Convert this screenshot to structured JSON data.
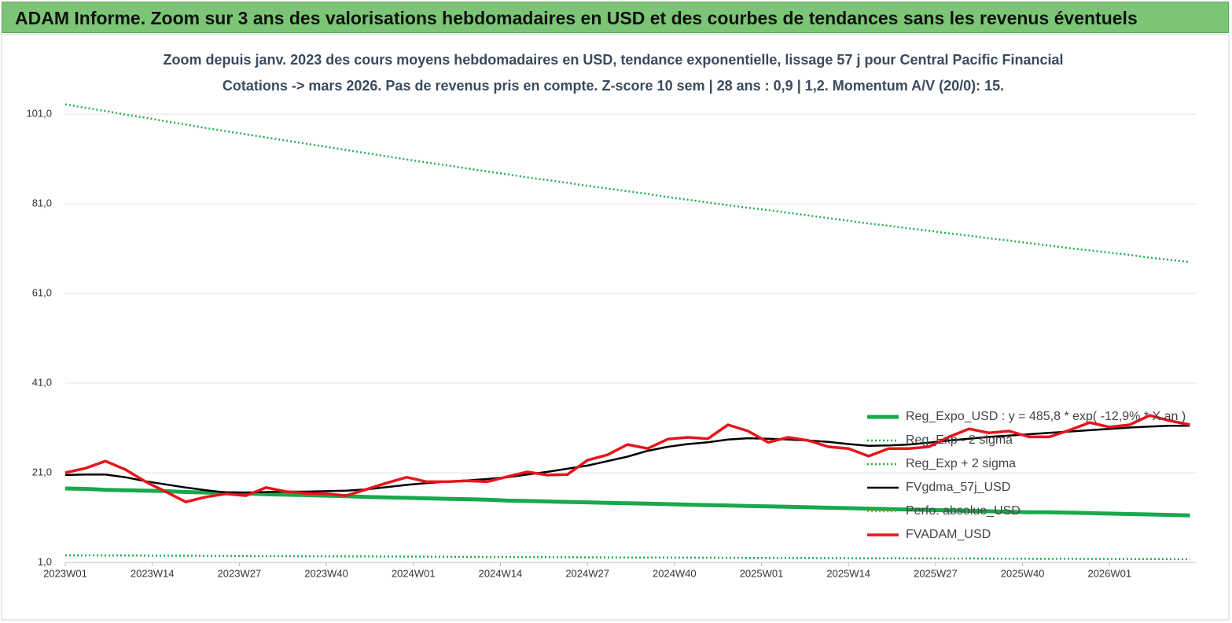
{
  "header": {
    "title": "ADAM Informe. Zoom sur 3 ans des valorisations hebdomadaires en USD et des courbes de tendances sans les revenus éventuels"
  },
  "chart_data": {
    "type": "line",
    "title": "Zoom depuis janv. 2023 des cours moyens hebdomadaires en USD, tendance exponentielle, lissage 57 j pour Central Pacific Financial",
    "subtitle": "Cotations -> mars 2026. Pas de revenus pris en compte. Z-score 10 sem | 28 ans : 0,9 | 1,2. Momentum A/V (20/0): 15.",
    "x": [
      0,
      3,
      6,
      9,
      12,
      15,
      18,
      21,
      24,
      27,
      30,
      33,
      36,
      39,
      42,
      45,
      48,
      51,
      54,
      57,
      60,
      63,
      66,
      69,
      72,
      75,
      78,
      81,
      84,
      87,
      90,
      93,
      96,
      99,
      102,
      105,
      108,
      111,
      114,
      117,
      120,
      123,
      126,
      129,
      132,
      135,
      138,
      141,
      144,
      147,
      150,
      153,
      156,
      159,
      162,
      165,
      168
    ],
    "xlim": [
      0,
      169
    ],
    "xticks": [
      {
        "value": 0,
        "label": "2023W01"
      },
      {
        "value": 13,
        "label": "2023W14"
      },
      {
        "value": 26,
        "label": "2023W27"
      },
      {
        "value": 39,
        "label": "2023W40"
      },
      {
        "value": 52,
        "label": "2024W01"
      },
      {
        "value": 65,
        "label": "2024W14"
      },
      {
        "value": 78,
        "label": "2024W27"
      },
      {
        "value": 91,
        "label": "2024W40"
      },
      {
        "value": 104,
        "label": "2025W01"
      },
      {
        "value": 117,
        "label": "2025W14"
      },
      {
        "value": 130,
        "label": "2025W27"
      },
      {
        "value": 143,
        "label": "2025W40"
      },
      {
        "value": 156,
        "label": "2026W01"
      }
    ],
    "ylim": [
      1,
      104
    ],
    "yticks": [
      {
        "value": 1,
        "label": "1,0"
      },
      {
        "value": 21,
        "label": "21,0"
      },
      {
        "value": 41,
        "label": "41,0"
      },
      {
        "value": 61,
        "label": "61,0"
      },
      {
        "value": 81,
        "label": "81,0"
      },
      {
        "value": 101,
        "label": "101,0"
      }
    ],
    "grid": true,
    "series": [
      {
        "name": "Reg_Expo_USD : y = 485,8 * exp( -12,9% * X an )",
        "color": "#19a84a",
        "style": "solid",
        "values": [
          17.5,
          17.4,
          17.2,
          17.1,
          17.0,
          16.9,
          16.7,
          16.6,
          16.5,
          16.4,
          16.2,
          16.1,
          16.0,
          15.9,
          15.8,
          15.6,
          15.5,
          15.4,
          15.3,
          15.2,
          15.1,
          15.0,
          14.8,
          14.7,
          14.6,
          14.5,
          14.4,
          14.3,
          14.2,
          14.1,
          14.0,
          13.9,
          13.8,
          13.7,
          13.6,
          13.5,
          13.4,
          13.3,
          13.2,
          13.1,
          13.0,
          12.9,
          12.8,
          12.7,
          12.6,
          12.5,
          12.4,
          12.3,
          12.2,
          12.2,
          12.1,
          12.0,
          11.9,
          11.8,
          11.7,
          11.6,
          11.5
        ]
      },
      {
        "name": "Reg_Exp - 2 sigma",
        "color": "#22b04a",
        "style": "dotted",
        "values": [
          2.6,
          2.58,
          2.56,
          2.54,
          2.52,
          2.5,
          2.49,
          2.47,
          2.45,
          2.43,
          2.41,
          2.4,
          2.38,
          2.36,
          2.35,
          2.33,
          2.31,
          2.29,
          2.28,
          2.26,
          2.24,
          2.22,
          2.21,
          2.19,
          2.17,
          2.16,
          2.14,
          2.13,
          2.11,
          2.1,
          2.08,
          2.07,
          2.05,
          2.04,
          2.02,
          2.01,
          1.99,
          1.98,
          1.96,
          1.95,
          1.93,
          1.92,
          1.91,
          1.89,
          1.88,
          1.87,
          1.85,
          1.84,
          1.82,
          1.81,
          1.8,
          1.79,
          1.77,
          1.76,
          1.74,
          1.73,
          1.71
        ]
      },
      {
        "name": "Reg_Exp + 2 sigma",
        "color": "#22b04a",
        "style": "dotted",
        "values": [
          103.2,
          102.4,
          101.7,
          100.9,
          100.2,
          99.4,
          98.7,
          97.9,
          97.2,
          96.5,
          95.8,
          95.1,
          94.4,
          93.7,
          93.0,
          92.3,
          91.6,
          90.9,
          90.2,
          89.6,
          88.9,
          88.2,
          87.6,
          86.9,
          86.3,
          85.7,
          85.0,
          84.4,
          83.8,
          83.2,
          82.5,
          81.9,
          81.3,
          80.7,
          80.1,
          79.6,
          79.0,
          78.4,
          77.8,
          77.2,
          76.6,
          76.1,
          75.5,
          75.0,
          74.4,
          73.9,
          73.3,
          72.8,
          72.2,
          71.7,
          71.1,
          70.6,
          70.1,
          69.6,
          69.0,
          68.5,
          68.0
        ]
      },
      {
        "name": "FVgdma_57j_USD",
        "color": "#000000",
        "style": "solid",
        "values": [
          20.5,
          20.6,
          20.6,
          20.0,
          19.1,
          18.4,
          17.7,
          17.1,
          16.6,
          16.6,
          16.7,
          16.8,
          16.8,
          16.9,
          17.0,
          17.3,
          17.8,
          18.3,
          18.7,
          19.0,
          19.3,
          19.6,
          20.0,
          20.6,
          21.2,
          21.9,
          22.6,
          23.6,
          24.6,
          25.9,
          26.8,
          27.4,
          27.8,
          28.4,
          28.7,
          28.6,
          28.4,
          28.2,
          27.9,
          27.4,
          27.0,
          27.1,
          27.3,
          27.7,
          28.2,
          28.6,
          29.0,
          29.3,
          29.6,
          29.9,
          30.2,
          30.5,
          30.8,
          31.1,
          31.3,
          31.5,
          31.5
        ]
      },
      {
        "name": "Perfo. absolue_USD",
        "color": "#e8891b",
        "style": "dotted",
        "values": [
          21.0,
          22.0,
          23.6,
          21.7,
          19.0,
          16.8,
          14.5,
          15.6,
          16.3,
          15.9,
          17.7,
          16.8,
          16.4,
          16.3,
          15.9,
          17.3,
          18.7,
          20.0,
          19.0,
          19.0,
          19.2,
          19.0,
          20.1,
          21.2,
          20.5,
          20.6,
          23.8,
          25.0,
          27.3,
          26.4,
          28.5,
          28.9,
          28.6,
          31.7,
          30.3,
          27.8,
          28.9,
          28.2,
          26.8,
          26.4,
          24.7,
          26.4,
          26.4,
          26.8,
          29.0,
          30.8,
          29.9,
          30.3,
          29.0,
          29.0,
          30.5,
          32.2,
          31.2,
          31.7,
          33.8,
          32.6,
          31.7
        ]
      },
      {
        "name": "FVADAM_USD",
        "color": "#e8141b",
        "style": "solid",
        "values": [
          21.0,
          22.0,
          23.6,
          21.7,
          19.0,
          16.8,
          14.5,
          15.6,
          16.3,
          15.9,
          17.7,
          16.8,
          16.4,
          16.3,
          15.9,
          17.3,
          18.7,
          20.0,
          19.0,
          19.0,
          19.2,
          19.0,
          20.1,
          21.2,
          20.5,
          20.6,
          23.8,
          25.0,
          27.3,
          26.4,
          28.5,
          28.9,
          28.6,
          31.7,
          30.3,
          27.8,
          28.9,
          28.2,
          26.8,
          26.4,
          24.7,
          26.4,
          26.4,
          26.8,
          29.0,
          30.8,
          29.9,
          30.3,
          29.0,
          29.0,
          30.5,
          32.2,
          31.2,
          31.7,
          33.8,
          32.6,
          31.7
        ]
      }
    ]
  }
}
